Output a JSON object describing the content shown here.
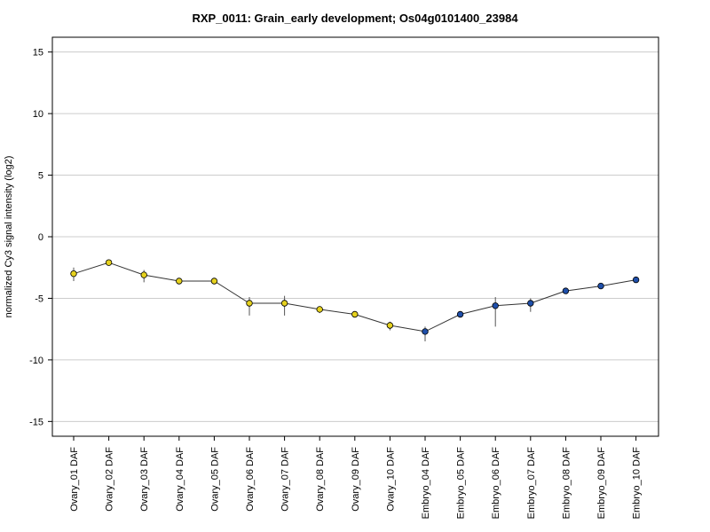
{
  "chart_data": {
    "type": "line",
    "title": "RXP_0011: Grain_early development; Os04g0101400_23984",
    "xlabel": "",
    "ylabel": "normalized Cy3 signal intensity (log2)",
    "ylim": [
      -16.2,
      16.2
    ],
    "yticks": [
      -15,
      -10,
      -5,
      0,
      5,
      10,
      15
    ],
    "grid": true,
    "categories": [
      "Ovary_01 DAF",
      "Ovary_02 DAF",
      "Ovary_03 DAF",
      "Ovary_04 DAF",
      "Ovary_05 DAF",
      "Ovary_06 DAF",
      "Ovary_07 DAF",
      "Ovary_08 DAF",
      "Ovary_09 DAF",
      "Ovary_10 DAF",
      "Embryo_04 DAF",
      "Embryo_05 DAF",
      "Embryo_06 DAF",
      "Embryo_07 DAF",
      "Embryo_08 DAF",
      "Embryo_09 DAF",
      "Embryo_10 DAF"
    ],
    "values": [
      -3.0,
      -2.1,
      -3.1,
      -3.6,
      -3.6,
      -5.4,
      -5.4,
      -5.9,
      -6.3,
      -7.2,
      -7.7,
      -6.3,
      -5.6,
      -5.4,
      -4.4,
      -4.0,
      -3.5
    ],
    "error_low": [
      -3.6,
      -2.2,
      -3.7,
      -3.7,
      -3.7,
      -6.4,
      -6.4,
      -6.2,
      -6.4,
      -7.6,
      -8.5,
      -6.4,
      -7.3,
      -6.1,
      -4.5,
      -4.1,
      -3.6
    ],
    "error_high": [
      -2.5,
      -2.0,
      -2.7,
      -3.5,
      -3.5,
      -4.9,
      -4.8,
      -5.7,
      -6.2,
      -6.9,
      -7.3,
      -6.2,
      -4.9,
      -5.0,
      -4.3,
      -3.9,
      -3.4
    ],
    "point_colors": [
      "#e6d21e",
      "#e6d21e",
      "#e6d21e",
      "#e6d21e",
      "#e6d21e",
      "#e6d21e",
      "#e6d21e",
      "#e6d21e",
      "#e6d21e",
      "#e6d21e",
      "#1f4faa",
      "#1f4faa",
      "#1f4faa",
      "#1f4faa",
      "#1f4faa",
      "#1f4faa",
      "#1f4faa"
    ]
  }
}
